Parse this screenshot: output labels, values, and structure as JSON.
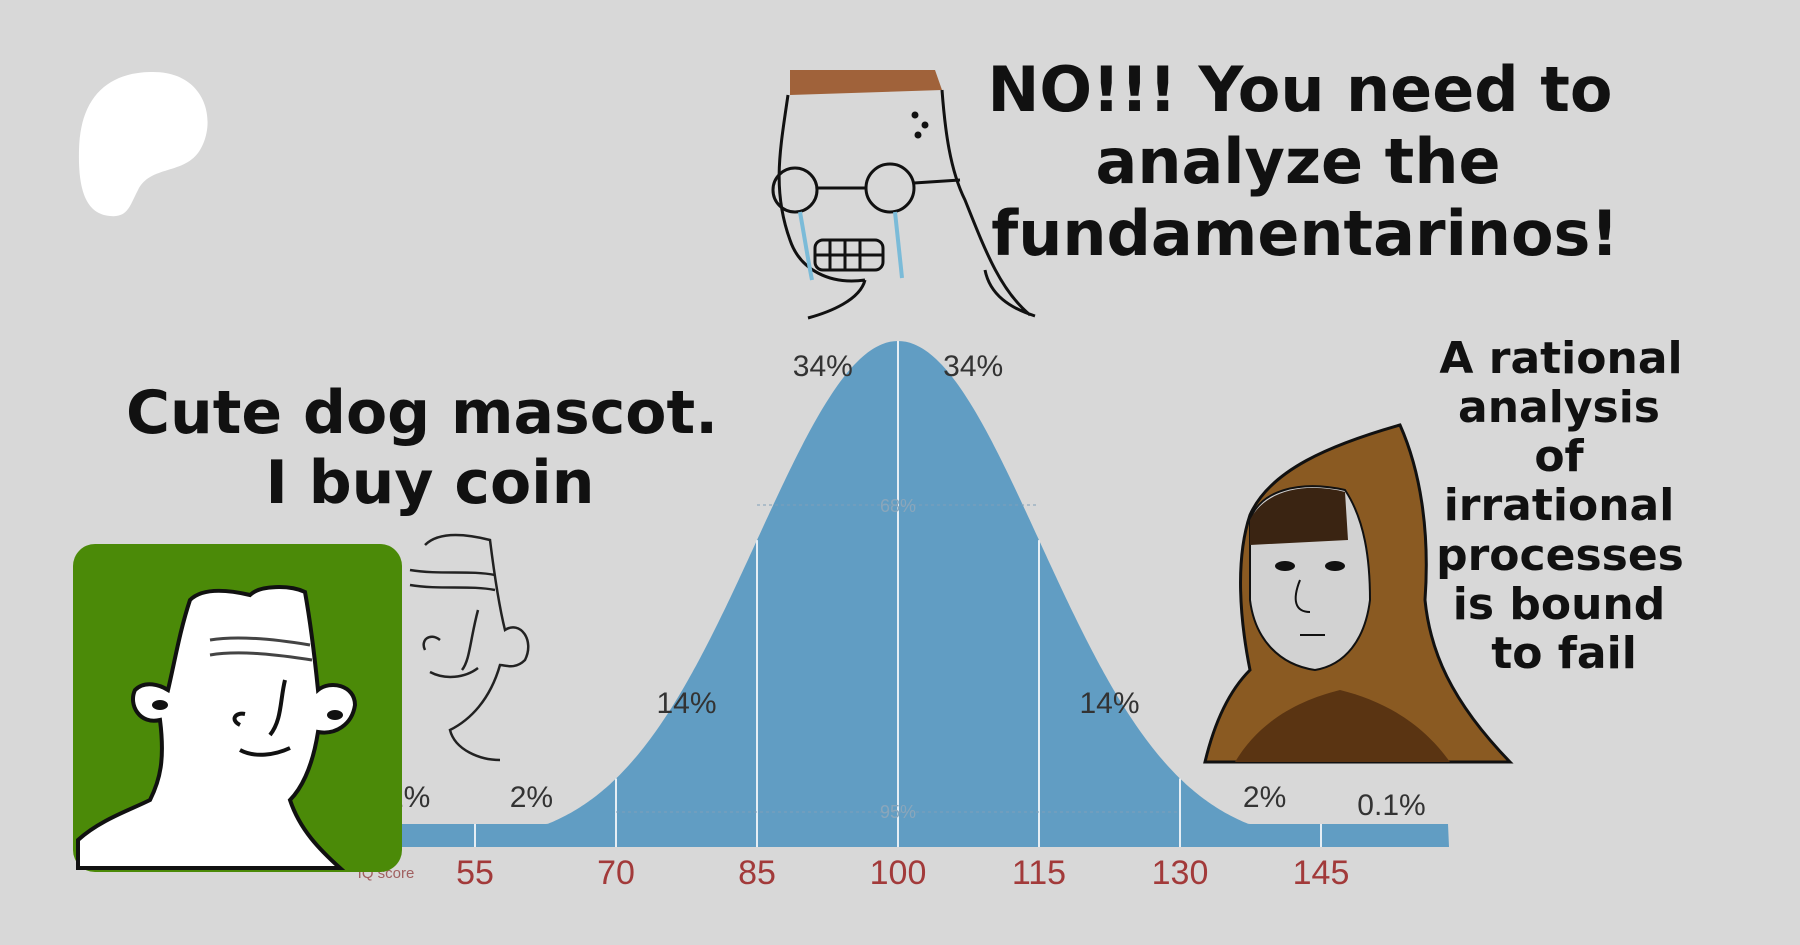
{
  "captions": {
    "top": [
      "NO!!! You need to",
      "analyze the",
      "fundamentarinos!"
    ],
    "left": [
      "Cute dog mascot.",
      "I buy coin"
    ],
    "right": [
      "A rational",
      "analysis",
      "of",
      "irrational",
      "processes",
      "is bound",
      "to fail"
    ]
  },
  "chart": {
    "type": "area",
    "mean": 100,
    "sd": 15,
    "axis_title": "IQ score",
    "ticks": [
      "55",
      "70",
      "85",
      "100",
      "115",
      "130",
      "145"
    ],
    "tick_values": [
      55,
      70,
      85,
      100,
      115,
      130,
      145
    ],
    "percent_labels": [
      {
        "text": ".1%",
        "x": 47.5
      },
      {
        "text": "2%",
        "x": 61
      },
      {
        "text": "14%",
        "x": 77.5
      },
      {
        "text": "34%",
        "x": 92
      },
      {
        "text": "34%",
        "x": 108
      },
      {
        "text": "14%",
        "x": 122.5
      },
      {
        "text": "2%",
        "x": 139
      },
      {
        "text": "0.1%",
        "x": 152.5
      }
    ],
    "inner_labels": {
      "band_68": "68%",
      "band_95": "95%"
    },
    "fill_color": "#619dc3"
  },
  "colors": {
    "background": "#d8d8d8",
    "avatar_bg": "#4b8a08",
    "hood": "#8a5a22"
  },
  "logo": {
    "name": "patreon-logo"
  }
}
